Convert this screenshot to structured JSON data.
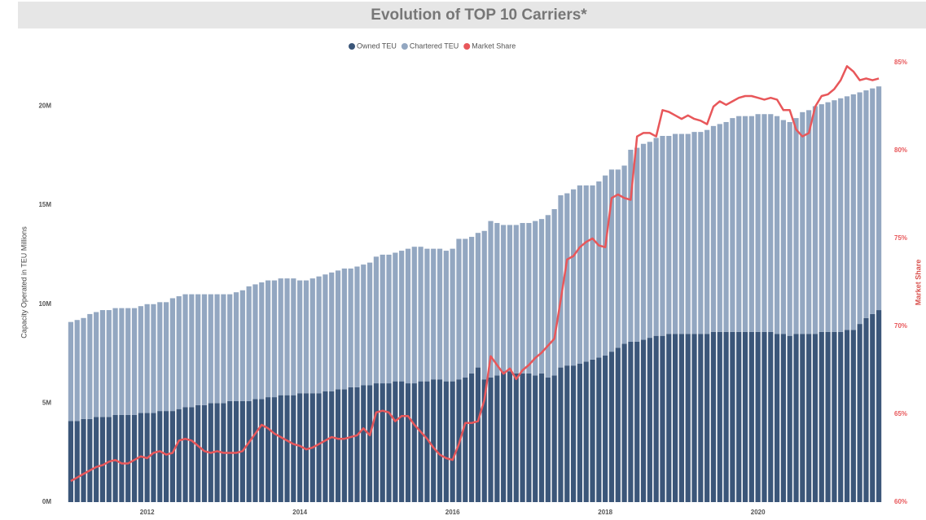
{
  "chart_data": {
    "type": "bar",
    "stacked": true,
    "title": "Evolution of TOP 10 Carriers*",
    "y_label": "Capacity Operated in TEU Millions",
    "y2_label": "Market Share",
    "categories": [
      null,
      null,
      null,
      null,
      null,
      null,
      null,
      null,
      null,
      null,
      null,
      null,
      "2012",
      null,
      null,
      null,
      null,
      null,
      null,
      null,
      null,
      null,
      null,
      null,
      null,
      null,
      null,
      null,
      null,
      null,
      null,
      null,
      null,
      null,
      null,
      null,
      "2014",
      null,
      null,
      null,
      null,
      null,
      null,
      null,
      null,
      null,
      null,
      null,
      null,
      null,
      null,
      null,
      null,
      null,
      null,
      null,
      null,
      null,
      null,
      null,
      "2016",
      null,
      null,
      null,
      null,
      null,
      null,
      null,
      null,
      null,
      null,
      null,
      null,
      null,
      null,
      null,
      null,
      null,
      null,
      null,
      null,
      null,
      null,
      null,
      "2018",
      null,
      null,
      null,
      null,
      null,
      null,
      null,
      null,
      null,
      null,
      null,
      null,
      null,
      null,
      null,
      null,
      null,
      null,
      null,
      null,
      null,
      null,
      null,
      "2020",
      null,
      null,
      null,
      null,
      null,
      null,
      null,
      null,
      null,
      null,
      null,
      null,
      null,
      null,
      null,
      null,
      null,
      null,
      null
    ],
    "series": [
      {
        "name": "Owned TEU",
        "color": "#3b5679",
        "values": [
          4.1,
          4.1,
          4.2,
          4.2,
          4.3,
          4.3,
          4.3,
          4.4,
          4.4,
          4.4,
          4.4,
          4.5,
          4.5,
          4.5,
          4.6,
          4.6,
          4.6,
          4.7,
          4.8,
          4.8,
          4.9,
          4.9,
          5.0,
          5.0,
          5.0,
          5.1,
          5.1,
          5.1,
          5.1,
          5.2,
          5.2,
          5.3,
          5.3,
          5.4,
          5.4,
          5.4,
          5.5,
          5.5,
          5.5,
          5.5,
          5.6,
          5.6,
          5.7,
          5.7,
          5.8,
          5.8,
          5.9,
          5.9,
          6.0,
          6.0,
          6.0,
          6.1,
          6.1,
          6.0,
          6.0,
          6.1,
          6.1,
          6.2,
          6.2,
          6.1,
          6.1,
          6.2,
          6.3,
          6.5,
          6.8,
          6.2,
          6.3,
          6.4,
          6.6,
          6.6,
          6.5,
          6.5,
          6.5,
          6.4,
          6.5,
          6.3,
          6.4,
          6.8,
          6.9,
          6.9,
          7.0,
          7.1,
          7.2,
          7.3,
          7.4,
          7.6,
          7.8,
          8.0,
          8.1,
          8.1,
          8.2,
          8.3,
          8.4,
          8.4,
          8.5,
          8.5,
          8.5,
          8.5,
          8.5,
          8.5,
          8.5,
          8.6,
          8.6,
          8.6,
          8.6,
          8.6,
          8.6,
          8.6,
          8.6,
          8.6,
          8.6,
          8.5,
          8.5,
          8.4,
          8.5,
          8.5,
          8.5,
          8.5,
          8.6,
          8.6,
          8.6,
          8.6,
          8.7,
          8.7,
          9.0,
          9.3,
          9.5,
          9.7
        ]
      },
      {
        "name": "Chartered TEU",
        "color": "#93a7c1",
        "values": [
          5.0,
          5.1,
          5.1,
          5.3,
          5.3,
          5.4,
          5.4,
          5.4,
          5.4,
          5.4,
          5.4,
          5.4,
          5.5,
          5.5,
          5.5,
          5.5,
          5.7,
          5.7,
          5.7,
          5.7,
          5.6,
          5.6,
          5.5,
          5.5,
          5.5,
          5.4,
          5.5,
          5.6,
          5.8,
          5.8,
          5.9,
          5.9,
          5.9,
          5.9,
          5.9,
          5.9,
          5.7,
          5.7,
          5.8,
          5.9,
          5.9,
          6.0,
          6.0,
          6.1,
          6.0,
          6.1,
          6.1,
          6.2,
          6.4,
          6.5,
          6.5,
          6.5,
          6.6,
          6.8,
          6.9,
          6.8,
          6.7,
          6.6,
          6.6,
          6.6,
          6.7,
          7.1,
          7.0,
          6.9,
          6.8,
          7.5,
          7.9,
          7.7,
          7.4,
          7.4,
          7.5,
          7.6,
          7.6,
          7.8,
          7.8,
          8.2,
          8.4,
          8.7,
          8.7,
          8.9,
          9.0,
          8.9,
          8.8,
          8.9,
          9.1,
          9.2,
          9.0,
          9.0,
          9.7,
          9.8,
          9.9,
          9.9,
          10.0,
          10.1,
          10.0,
          10.1,
          10.1,
          10.1,
          10.2,
          10.2,
          10.3,
          10.4,
          10.5,
          10.6,
          10.8,
          10.9,
          10.9,
          10.9,
          11.0,
          11.0,
          11.0,
          11.0,
          10.8,
          10.8,
          10.9,
          11.2,
          11.3,
          11.5,
          11.5,
          11.6,
          11.7,
          11.8,
          11.8,
          11.9,
          11.7,
          11.5,
          11.4,
          11.3
        ]
      },
      {
        "name": "Market Share",
        "color": "#e8575a",
        "type": "line",
        "axis": "y2",
        "values": [
          61.2,
          61.4,
          61.6,
          61.8,
          62.0,
          62.1,
          62.3,
          62.4,
          62.2,
          62.2,
          62.4,
          62.6,
          62.5,
          62.8,
          62.9,
          62.7,
          62.8,
          63.5,
          63.6,
          63.5,
          63.2,
          62.9,
          62.8,
          62.9,
          62.8,
          62.8,
          62.8,
          62.9,
          63.4,
          63.9,
          64.4,
          64.2,
          63.9,
          63.7,
          63.5,
          63.3,
          63.2,
          63.0,
          63.1,
          63.3,
          63.5,
          63.7,
          63.6,
          63.6,
          63.7,
          63.8,
          64.2,
          63.8,
          65.1,
          65.2,
          65.1,
          64.6,
          64.9,
          64.9,
          64.4,
          64.0,
          63.6,
          63.1,
          62.7,
          62.5,
          62.4,
          63.3,
          64.5,
          64.5,
          64.6,
          65.8,
          68.3,
          67.8,
          67.3,
          67.6,
          67.0,
          67.5,
          67.8,
          68.2,
          68.5,
          68.9,
          69.3,
          71.5,
          73.8,
          74.0,
          74.5,
          74.8,
          75.0,
          74.6,
          74.5,
          77.3,
          77.5,
          77.3,
          77.2,
          80.8,
          81.0,
          81.0,
          80.8,
          82.3,
          82.2,
          82.0,
          81.8,
          82.0,
          81.8,
          81.7,
          81.5,
          82.5,
          82.8,
          82.6,
          82.8,
          83.0,
          83.1,
          83.1,
          83.0,
          82.9,
          83.0,
          82.9,
          82.3,
          82.3,
          81.2,
          80.8,
          81.0,
          82.5,
          83.1,
          83.2,
          83.5,
          84.0,
          84.8,
          84.5,
          84.0,
          84.1,
          84.0,
          84.1
        ]
      }
    ],
    "ylim": [
      0,
      22.2
    ],
    "yticks": [
      {
        "value": 0,
        "label": "0M"
      },
      {
        "value": 5,
        "label": "5M"
      },
      {
        "value": 10,
        "label": "10M"
      },
      {
        "value": 15,
        "label": "15M"
      },
      {
        "value": 20,
        "label": "20M"
      }
    ],
    "y2lim": [
      60,
      85
    ],
    "y2ticks": [
      {
        "value": 60,
        "label": "60%"
      },
      {
        "value": 65,
        "label": "65%"
      },
      {
        "value": 70,
        "label": "70%"
      },
      {
        "value": 75,
        "label": "75%"
      },
      {
        "value": 80,
        "label": "80%"
      },
      {
        "value": 85,
        "label": "85%"
      }
    ],
    "legend": "top",
    "grid": false
  }
}
